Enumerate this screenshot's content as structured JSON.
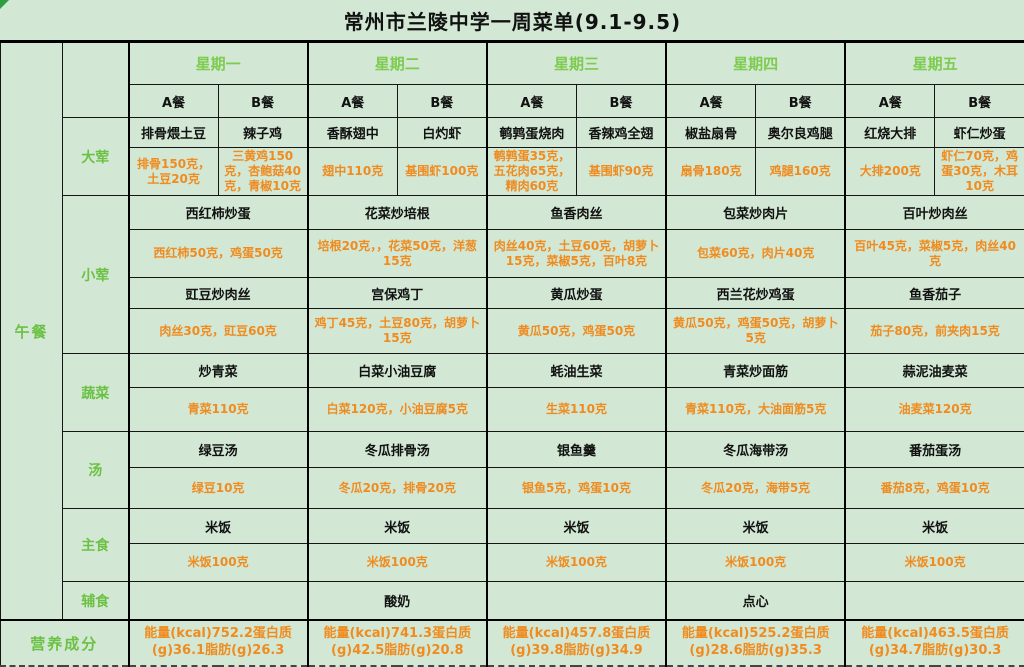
{
  "title": "常州市兰陵中学一周菜单(9.1-9.5)",
  "left": {
    "lunch": "午餐",
    "nutrition": "营养成分"
  },
  "days": [
    "星期一",
    "星期二",
    "星期三",
    "星期四",
    "星期五"
  ],
  "meal_types": {
    "a": "A餐",
    "b": "B餐"
  },
  "category_labels": {
    "dahun": "大荤",
    "xiaohun": "小荤",
    "shucai": "蔬菜",
    "tang": "汤",
    "zhushi": "主食",
    "fushi": "辅食"
  },
  "menu": {
    "main_dish_names": [
      "排骨煨土豆",
      "辣子鸡",
      "香酥翅中",
      "白灼虾",
      "鹌鹑蛋烧肉",
      "香辣鸡全翅",
      "椒盐扇骨",
      "奥尔良鸡腿",
      "红烧大排",
      "虾仁炒蛋"
    ],
    "main_dish_ingredients": [
      "排骨150克，土豆20克",
      "三黄鸡150克，杏鲍菇40克，青椒10克",
      "翅中110克",
      "基围虾100克",
      "鹌鹑蛋35克，五花肉65克，精肉60克",
      "基围虾90克",
      "扇骨180克",
      "鸡腿160克",
      "大排200克",
      "虾仁70克，鸡蛋30克，木耳10克"
    ],
    "small_dish1_names": [
      "西红柿炒蛋",
      "花菜炒培根",
      "鱼香肉丝",
      "包菜炒肉片",
      "百叶炒肉丝"
    ],
    "small_dish1_ingredients": [
      "西红柿50克，鸡蛋50克",
      "培根20克，，花菜50克，洋葱15克",
      "肉丝40克，土豆60克，胡萝卜15克，菜椒5克，百叶8克",
      "包菜60克，肉片40克",
      "百叶45克，菜椒5克，肉丝40克"
    ],
    "small_dish2_names": [
      "豇豆炒肉丝",
      "宫保鸡丁",
      "黄瓜炒蛋",
      "西兰花炒鸡蛋",
      "鱼香茄子"
    ],
    "small_dish2_ingredients": [
      "肉丝30克，豇豆60克",
      "鸡丁45克，土豆80克，胡萝卜15克",
      "黄瓜50克，鸡蛋50克",
      "黄瓜50克，鸡蛋50克，胡萝卜5克",
      "茄子80克，前夹肉15克"
    ],
    "vegetable_names": [
      "炒青菜",
      "白菜小油豆腐",
      "蚝油生菜",
      "青菜炒面筋",
      "蒜泥油麦菜"
    ],
    "vegetable_ingredients": [
      "青菜110克",
      "白菜120克，小油豆腐5克",
      "生菜110克",
      "青菜110克，大油面筋5克",
      "油麦菜120克"
    ],
    "soup_names": [
      "绿豆汤",
      "冬瓜排骨汤",
      "银鱼羹",
      "冬瓜海带汤",
      "番茄蛋汤"
    ],
    "soup_ingredients": [
      "绿豆10克",
      "冬瓜20克，排骨20克",
      "银鱼5克，鸡蛋10克",
      "冬瓜20克，海带5克",
      "番茄8克，鸡蛋10克"
    ],
    "staple_names": [
      "米饭",
      "米饭",
      "米饭",
      "米饭",
      "米饭"
    ],
    "staple_ingredients": [
      "米饭100克",
      "米饭100克",
      "米饭100克",
      "米饭100克",
      "米饭100克"
    ],
    "side_food": [
      "",
      "酸奶",
      "",
      "点心",
      ""
    ],
    "nutrition": [
      "能量(kcal)752.2蛋白质(g)36.1脂肪(g)26.3",
      "能量(kcal)741.3蛋白质(g)42.5脂肪(g)20.8",
      "能量(kcal)457.8蛋白质(g)39.8脂肪(g)34.9",
      "能量(kcal)525.2蛋白质(g)28.6脂肪(g)35.3",
      "能量(kcal)463.5蛋白质(g)34.7脂肪(g)30.3"
    ]
  },
  "colors": {
    "background": "#d2e8d4",
    "green_text": "#6cc144",
    "orange_text": "#ef8b1f",
    "border": "#161616",
    "corner_marker": "#2e9e3f"
  }
}
